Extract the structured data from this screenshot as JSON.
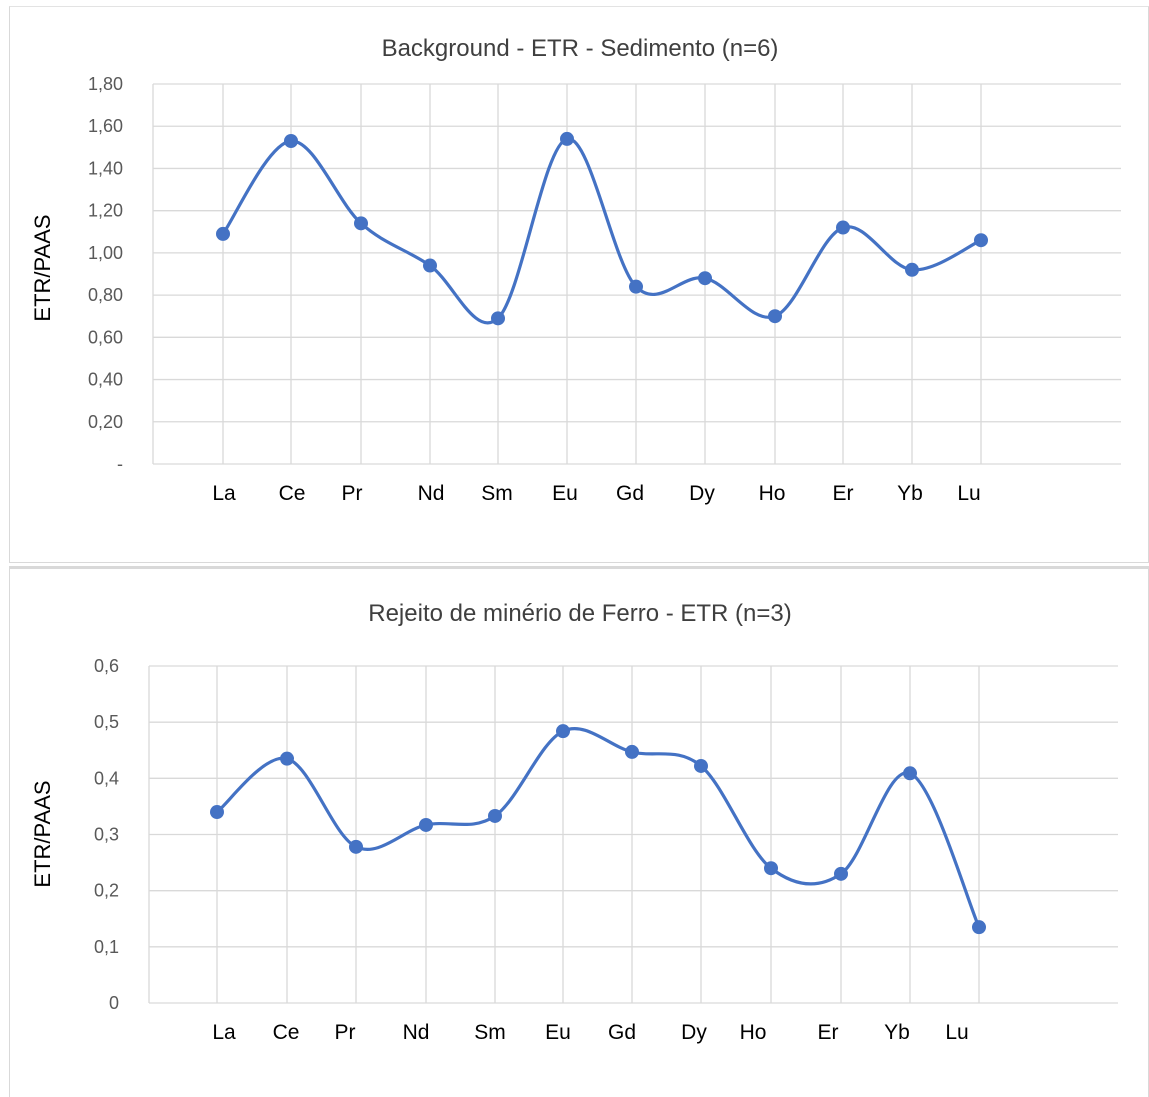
{
  "chart_data": [
    {
      "type": "line",
      "title": "Background - ETR - Sedimento (n=6)",
      "xlabel": "",
      "ylabel": "ETR/PAAS",
      "ylim": [
        0,
        1.8
      ],
      "categories": [
        "La",
        "Ce",
        "Pr",
        "Nd",
        "Sm",
        "Eu",
        "Gd",
        "Dy",
        "Ho",
        "Er",
        "Yb",
        "Lu"
      ],
      "y_ticks": [
        "-",
        "0,20",
        "0,40",
        "0,60",
        "0,80",
        "1,00",
        "1,20",
        "1,40",
        "1,60",
        "1,80"
      ],
      "series": [
        {
          "values": [
            1.09,
            1.53,
            1.14,
            0.94,
            0.69,
            1.54,
            0.84,
            0.88,
            0.7,
            1.12,
            0.92,
            1.06
          ]
        }
      ],
      "grid": true,
      "legend": "none",
      "smooth": true,
      "color": "#4472c4"
    },
    {
      "type": "line",
      "title": "Rejeito de minério de Ferro - ETR (n=3)",
      "xlabel": "",
      "ylabel": "ETR/PAAS",
      "ylim": [
        0,
        0.6
      ],
      "categories": [
        "La",
        "Ce",
        "Pr",
        "Nd",
        "Sm",
        "Eu",
        "Gd",
        "Dy",
        "Ho",
        "Er",
        "Yb",
        "Lu"
      ],
      "y_ticks": [
        "0",
        "0,1",
        "0,2",
        "0,3",
        "0,4",
        "0,5",
        "0,6"
      ],
      "series": [
        {
          "values": [
            0.34,
            0.435,
            0.278,
            0.317,
            0.333,
            0.484,
            0.447,
            0.422,
            0.24,
            0.23,
            0.409,
            0.135
          ]
        }
      ],
      "grid": true,
      "legend": "none",
      "smooth": true,
      "color": "#4472c4"
    }
  ]
}
